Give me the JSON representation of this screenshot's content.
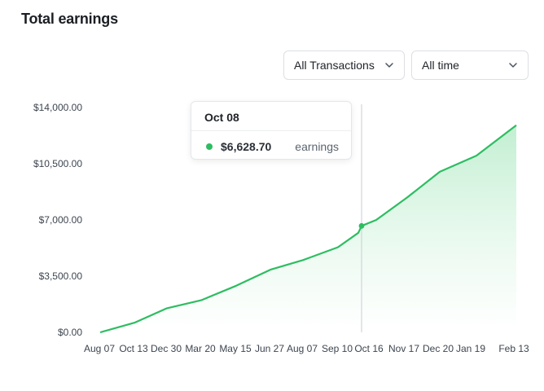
{
  "title": "Total earnings",
  "filters": {
    "transactions": "All Transactions",
    "time": "All time"
  },
  "icons": {
    "dropdown": "chevron-down-icon"
  },
  "colors": {
    "line": "#2dbd61",
    "area": "#d8f5e1"
  },
  "tooltip": {
    "date": "Oct 08",
    "value": "$6,628.70",
    "label": "earnings"
  },
  "chart_data": {
    "type": "area",
    "title": "Total earnings",
    "xlabel": "",
    "ylabel": "",
    "ylim": [
      0,
      14000
    ],
    "y_ticks": [
      "$0.00",
      "$3,500.00",
      "$7,000.00",
      "$10,500.00",
      "$14,000.00"
    ],
    "y_tick_values": [
      0,
      3500,
      7000,
      10500,
      14000
    ],
    "x_ticks": [
      "Aug 07",
      "Oct 13",
      "Dec 30",
      "Mar 20",
      "May 15",
      "Jun 27",
      "Aug 07",
      "Sep 10",
      "Oct 16",
      "Nov 17",
      "Dec 20",
      "Jan 19",
      "Feb 13"
    ],
    "grid": false,
    "legend": "none",
    "series": [
      {
        "values": [
          0,
          600,
          1500,
          2000,
          2900,
          3900,
          4500,
          5300,
          6200,
          6628.7,
          7000,
          8400,
          10000,
          11000,
          12900
        ]
      }
    ],
    "highlight": {
      "x": "Oct 08",
      "value": 6628.7
    }
  }
}
